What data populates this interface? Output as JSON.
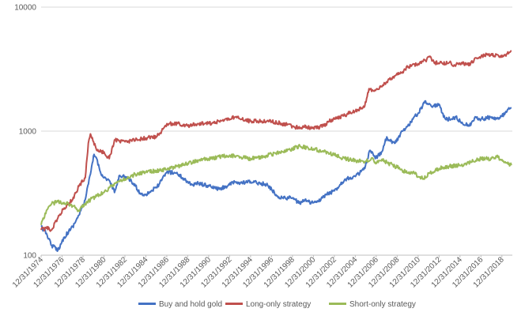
{
  "chart_data": {
    "type": "line",
    "title": "",
    "xlabel": "",
    "ylabel": "",
    "y_scale": "log",
    "ylim": [
      100,
      10000
    ],
    "y_ticks": [
      100,
      1000,
      10000
    ],
    "y_tick_labels": [
      "100",
      "1000",
      "10000"
    ],
    "x_range": [
      "12/31/1974",
      "12/31/2019"
    ],
    "x_tick_labels": [
      "12/31/1974",
      "12/31/1976",
      "12/31/1978",
      "12/31/1980",
      "12/31/1982",
      "12/31/1984",
      "12/31/1986",
      "12/31/1988",
      "12/31/1990",
      "12/31/1992",
      "12/31/1994",
      "12/31/1996",
      "12/31/1998",
      "12/31/2000",
      "12/31/2002",
      "12/31/2004",
      "12/31/2006",
      "12/31/2008",
      "12/31/2010",
      "12/31/2012",
      "12/31/2014",
      "12/31/2016",
      "12/31/2018"
    ],
    "grid": "horizontal",
    "legend_position": "bottom",
    "series": [
      {
        "name": "Buy and hold gold",
        "color": "#4472C4",
        "x": [
          1974.99,
          1975.5,
          1976.0,
          1976.6,
          1977.2,
          1978.0,
          1978.6,
          1979.2,
          1979.7,
          1980.05,
          1980.3,
          1980.6,
          1981.0,
          1981.5,
          1982.0,
          1982.5,
          1983.0,
          1983.5,
          1984.0,
          1984.5,
          1985.0,
          1985.5,
          1986.0,
          1986.5,
          1987.0,
          1987.9,
          1988.5,
          1989.0,
          1989.5,
          1990.0,
          1991.0,
          1992.0,
          1993.0,
          1993.6,
          1994.0,
          1995.0,
          1996.0,
          1996.5,
          1997.0,
          1997.5,
          1998.0,
          1999.0,
          1999.7,
          2000.0,
          2000.5,
          2001.0,
          2001.5,
          2002.0,
          2003.0,
          2004.0,
          2005.0,
          2005.9,
          2006.4,
          2006.9,
          2007.5,
          2008.0,
          2008.2,
          2008.8,
          2009.3,
          2010.0,
          2010.5,
          2011.0,
          2011.7,
          2012.0,
          2012.5,
          2013.0,
          2013.3,
          2013.6,
          2014.0,
          2014.6,
          2015.0,
          2015.9,
          2016.5,
          2017.0,
          2018.0,
          2018.7,
          2019.3,
          2019.9
        ],
        "values": [
          170,
          150,
          120,
          110,
          140,
          170,
          210,
          280,
          450,
          650,
          600,
          480,
          420,
          400,
          320,
          440,
          430,
          400,
          360,
          310,
          310,
          330,
          350,
          400,
          470,
          460,
          420,
          390,
          370,
          380,
          360,
          340,
          370,
          390,
          380,
          390,
          380,
          370,
          340,
          300,
          290,
          290,
          260,
          280,
          270,
          265,
          270,
          300,
          330,
          410,
          430,
          500,
          700,
          600,
          680,
          900,
          850,
          800,
          950,
          1100,
          1250,
          1400,
          1750,
          1650,
          1600,
          1650,
          1400,
          1250,
          1250,
          1300,
          1200,
          1100,
          1300,
          1250,
          1300,
          1250,
          1400,
          1550
        ]
      },
      {
        "name": "Long-only strategy",
        "color": "#C0504D",
        "x": [
          1974.99,
          1975.5,
          1976.0,
          1976.6,
          1977.2,
          1978.0,
          1978.6,
          1979.2,
          1979.5,
          1979.7,
          1980.0,
          1980.3,
          1980.7,
          1981.0,
          1981.5,
          1982.0,
          1982.5,
          1983.0,
          1984.0,
          1985.0,
          1986.0,
          1986.5,
          1987.0,
          1988.0,
          1989.0,
          1990.0,
          1991.0,
          1992.0,
          1993.0,
          1993.5,
          1994.0,
          1995.0,
          1996.0,
          1997.0,
          1998.0,
          1999.0,
          1999.7,
          2000.0,
          2001.0,
          2002.0,
          2002.5,
          2003.0,
          2004.0,
          2005.0,
          2005.9,
          2006.3,
          2006.8,
          2007.5,
          2008.0,
          2008.8,
          2009.5,
          2010.0,
          2011.0,
          2011.7,
          2012.0,
          2012.5,
          2013.0,
          2014.0,
          2014.5,
          2015.0,
          2016.0,
          2016.5,
          2017.0,
          2018.0,
          2018.7,
          2019.5,
          2019.9
        ],
        "values": [
          160,
          165,
          160,
          200,
          240,
          280,
          360,
          420,
          800,
          950,
          820,
          700,
          680,
          680,
          600,
          850,
          820,
          820,
          850,
          880,
          900,
          1000,
          1150,
          1150,
          1100,
          1150,
          1150,
          1200,
          1250,
          1300,
          1250,
          1200,
          1200,
          1200,
          1150,
          1100,
          1050,
          1100,
          1050,
          1100,
          1200,
          1250,
          1350,
          1450,
          1600,
          2200,
          2100,
          2300,
          2500,
          2800,
          3000,
          3300,
          3500,
          3700,
          4000,
          3600,
          3500,
          3600,
          3400,
          3500,
          3500,
          3900,
          4000,
          4200,
          4000,
          4200,
          4400
        ]
      },
      {
        "name": "Short-only strategy",
        "color": "#9BBB59",
        "x": [
          1974.99,
          1975.5,
          1976.0,
          1976.6,
          1977.2,
          1978.0,
          1978.6,
          1979.2,
          1979.7,
          1980.3,
          1981.0,
          1981.5,
          1982.0,
          1983.0,
          1984.0,
          1985.0,
          1986.0,
          1987.0,
          1988.0,
          1989.0,
          1990.0,
          1991.0,
          1992.0,
          1993.0,
          1994.0,
          1995.0,
          1996.0,
          1997.0,
          1998.0,
          1999.0,
          1999.7,
          2000.5,
          2001.0,
          2002.0,
          2003.0,
          2004.0,
          2005.0,
          2006.0,
          2006.6,
          2007.0,
          2007.6,
          2008.0,
          2009.0,
          2010.0,
          2010.5,
          2011.0,
          2011.7,
          2012.0,
          2012.5,
          2013.0,
          2013.5,
          2014.0,
          2015.0,
          2016.0,
          2016.5,
          2017.0,
          2018.0,
          2018.5,
          2019.0,
          2019.5,
          2019.9
        ],
        "values": [
          175,
          230,
          260,
          270,
          265,
          250,
          230,
          260,
          280,
          300,
          320,
          350,
          380,
          410,
          450,
          470,
          480,
          490,
          520,
          550,
          580,
          600,
          620,
          640,
          620,
          600,
          620,
          650,
          680,
          720,
          760,
          730,
          720,
          680,
          640,
          600,
          580,
          570,
          610,
          550,
          580,
          560,
          510,
          460,
          470,
          430,
          420,
          460,
          470,
          500,
          510,
          520,
          530,
          560,
          580,
          600,
          600,
          620,
          590,
          550,
          530
        ]
      }
    ]
  }
}
